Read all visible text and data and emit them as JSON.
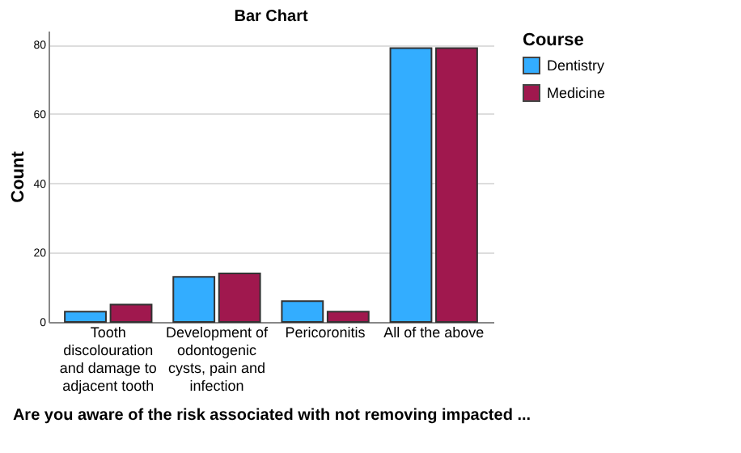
{
  "chart_data": {
    "type": "bar",
    "title": "Bar Chart",
    "xlabel": "Are you aware of the risk associated with not removing impacted ...",
    "ylabel": "Count",
    "legend_title": "Course",
    "categories": [
      "Tooth discolouration and damage to adjacent tooth",
      "Development of odontogenic cysts, pain and infection",
      "Pericoronitis",
      "All of the above"
    ],
    "series": [
      {
        "name": "Dentistry",
        "color": "#33adff",
        "values": [
          3,
          13,
          6,
          79
        ]
      },
      {
        "name": "Medicine",
        "color": "#a0184e",
        "values": [
          5,
          14,
          3,
          79
        ]
      }
    ],
    "ylim": [
      0,
      84
    ],
    "yticks": [
      0,
      20,
      40,
      60,
      80
    ],
    "grid": "y",
    "legend": "top right"
  }
}
